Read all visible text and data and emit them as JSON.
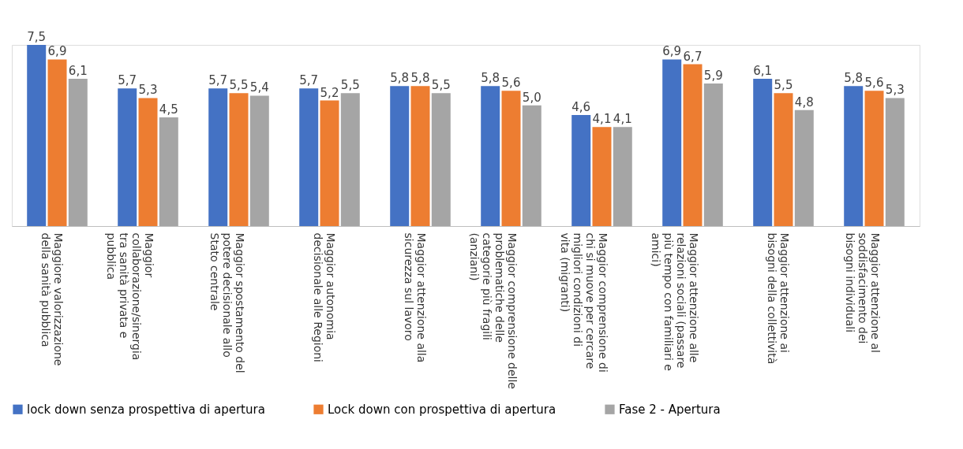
{
  "chart_data": {
    "type": "bar",
    "categories": [
      "Maggiore valorizzazione della sanità pubblica",
      "Maggior collaborazione/sinergia tra sanità privata e pubblica",
      "Maggior spostamento del potere decisionale allo Stato centrale",
      "Maggior autonomia decisionale alle Regioni",
      "Maggior attenzione alla sicurezza sul lavoro",
      "Maggior comprensione delle problematiche delle categorie più fragili (anziani)",
      "Maggior comprensione di chi si muove per cercare migliori condizioni di vita (migranti)",
      "Maggior attenzione alle relazioni sociali (passare più tempo con familiari e amici)",
      "Maggior attenzione ai bisogni della collettività",
      "Maggior attenzione al soddisfacimento dei bisogni individuali"
    ],
    "series": [
      {
        "name": "lock down senza prospettiva di apertura",
        "color": "#4472c4",
        "values": [
          7.5,
          5.7,
          5.7,
          5.7,
          5.8,
          5.8,
          4.6,
          6.9,
          6.1,
          5.8
        ],
        "value_labels": [
          "7,5",
          "5,7",
          "5,7",
          "5,7",
          "5,8",
          "5,8",
          "4,6",
          "6,9",
          "6,1",
          "5,8"
        ]
      },
      {
        "name": "Lock down con prospettiva di apertura",
        "color": "#ed7d31",
        "values": [
          6.9,
          5.3,
          5.5,
          5.2,
          5.8,
          5.6,
          4.1,
          6.7,
          5.5,
          5.6
        ],
        "value_labels": [
          "6,9",
          "5,3",
          "5,5",
          "5,2",
          "5,8",
          "5,6",
          "4,1",
          "6,7",
          "5,5",
          "5,6"
        ]
      },
      {
        "name": "Fase 2 - Apertura",
        "color": "#a5a5a5",
        "values": [
          6.1,
          4.5,
          5.4,
          5.5,
          5.5,
          5.0,
          4.1,
          5.9,
          4.8,
          5.3
        ],
        "value_labels": [
          "6,1",
          "4,5",
          "5,4",
          "5,5",
          "5,5",
          "5,0",
          "4,1",
          "5,9",
          "4,8",
          "5,3"
        ]
      }
    ],
    "legend": "bottom"
  }
}
